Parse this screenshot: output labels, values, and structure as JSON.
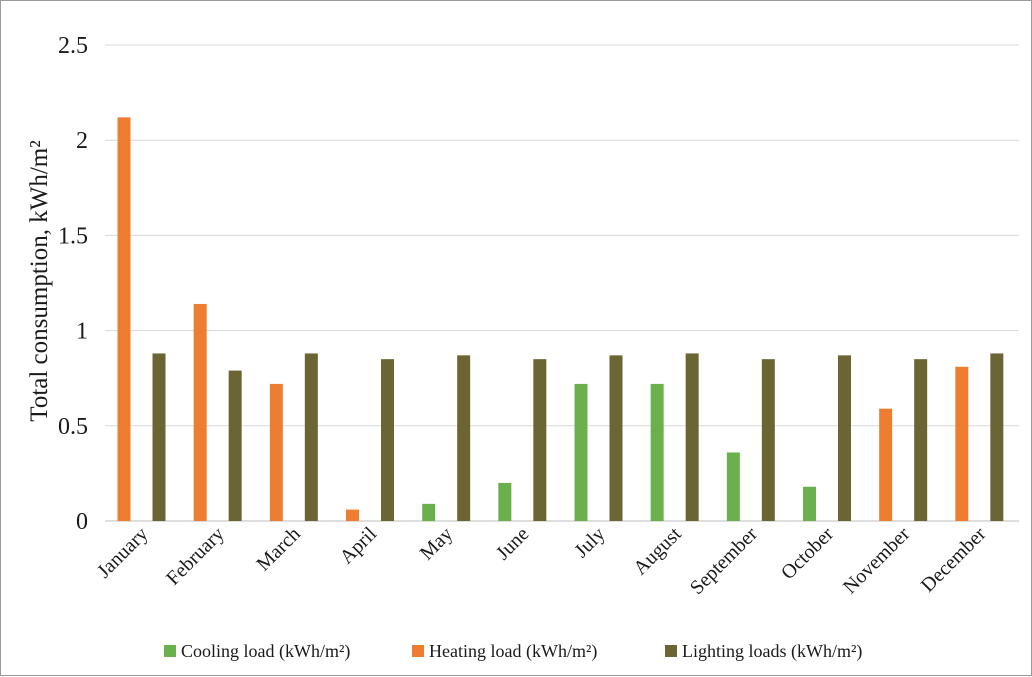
{
  "chart_data": {
    "type": "bar",
    "title": "",
    "xlabel": "",
    "ylabel": "Total consumption, kWh/m²",
    "ylim": [
      0,
      2.5
    ],
    "yticks": [
      "0",
      "0.5",
      "1",
      "1.5",
      "2",
      "2.5"
    ],
    "grid": true,
    "legend_position": "bottom",
    "categories": [
      "January",
      "February",
      "March",
      "April",
      "May",
      "June",
      "July",
      "August",
      "September",
      "October",
      "November",
      "December"
    ],
    "series": [
      {
        "name": "Cooling load (kWh/m²)",
        "color": "#6ab04c",
        "values": [
          0,
          0,
          0,
          0,
          0.09,
          0.2,
          0.72,
          0.72,
          0.36,
          0.18,
          0,
          0
        ]
      },
      {
        "name": "Heating load (kWh/m²)",
        "color": "#ed7d31",
        "values": [
          2.12,
          1.14,
          0.72,
          0.06,
          0,
          0,
          0,
          0,
          0,
          0,
          0.59,
          0.81
        ]
      },
      {
        "name": "Lighting loads (kWh/m²)",
        "color": "#6b6534",
        "values": [
          0.88,
          0.79,
          0.88,
          0.85,
          0.87,
          0.85,
          0.87,
          0.88,
          0.85,
          0.87,
          0.85,
          0.88
        ]
      }
    ]
  }
}
